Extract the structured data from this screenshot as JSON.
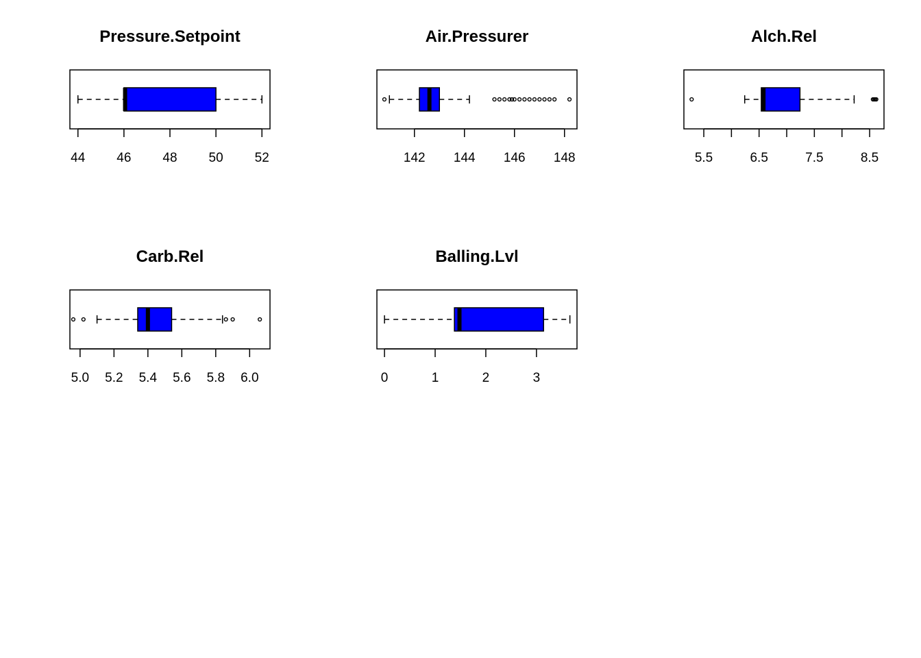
{
  "colors": {
    "box_fill": "#0000ff",
    "stroke": "#000000",
    "background": "#ffffff"
  },
  "chart_data": [
    {
      "type": "boxplot",
      "orientation": "horizontal",
      "title": "Pressure.Setpoint",
      "xlim": [
        43.65,
        52.35
      ],
      "ticks": [
        44,
        46,
        48,
        50,
        52
      ],
      "tick_labels": [
        "44",
        "46",
        "48",
        "50",
        "52"
      ],
      "stats": {
        "whisker_low": 44,
        "q1": 46,
        "median": 46.05,
        "q3": 50,
        "whisker_high": 52
      },
      "outliers": []
    },
    {
      "type": "boxplot",
      "orientation": "horizontal",
      "title": "Air.Pressurer",
      "xlim": [
        140.5,
        148.5
      ],
      "ticks": [
        142,
        144,
        146,
        148
      ],
      "tick_labels": [
        "142",
        "144",
        "146",
        "148"
      ],
      "stats": {
        "whisker_low": 141.0,
        "q1": 142.2,
        "median": 142.6,
        "q3": 143.0,
        "whisker_high": 144.2
      },
      "outliers": [
        140.8,
        145.2,
        145.4,
        145.6,
        145.8,
        145.9,
        146.0,
        146.2,
        146.4,
        146.6,
        146.8,
        147.0,
        147.2,
        147.4,
        147.6,
        148.2
      ]
    },
    {
      "type": "boxplot",
      "orientation": "horizontal",
      "title": "Alch.Rel",
      "xlim": [
        5.14,
        8.76
      ],
      "ticks": [
        5.5,
        6.0,
        6.5,
        7.0,
        7.5,
        8.0,
        8.5
      ],
      "tick_labels": [
        "5.5",
        "",
        "6.5",
        "",
        "7.5",
        "",
        "8.5"
      ],
      "stats": {
        "whisker_low": 6.24,
        "q1": 6.54,
        "median": 6.58,
        "q3": 7.24,
        "whisker_high": 8.22
      },
      "outliers": [
        5.28,
        8.56,
        8.58,
        8.6,
        8.62
      ]
    },
    {
      "type": "boxplot",
      "orientation": "horizontal",
      "title": "Carb.Rel",
      "xlim": [
        4.94,
        6.12
      ],
      "ticks": [
        5.0,
        5.2,
        5.4,
        5.6,
        5.8,
        6.0
      ],
      "tick_labels": [
        "5.0",
        "5.2",
        "5.4",
        "5.6",
        "5.8",
        "6.0"
      ],
      "stats": {
        "whisker_low": 5.1,
        "q1": 5.34,
        "median": 5.4,
        "q3": 5.54,
        "whisker_high": 5.84
      },
      "outliers": [
        4.96,
        5.02,
        5.86,
        5.9,
        6.06
      ]
    },
    {
      "type": "boxplot",
      "orientation": "horizontal",
      "title": "Balling.Lvl",
      "xlim": [
        -0.15,
        3.8
      ],
      "ticks": [
        0,
        1,
        2,
        3
      ],
      "tick_labels": [
        "0",
        "1",
        "2",
        "3"
      ],
      "stats": {
        "whisker_low": 0.0,
        "q1": 1.38,
        "median": 1.48,
        "q3": 3.14,
        "whisker_high": 3.66
      },
      "outliers": []
    }
  ]
}
